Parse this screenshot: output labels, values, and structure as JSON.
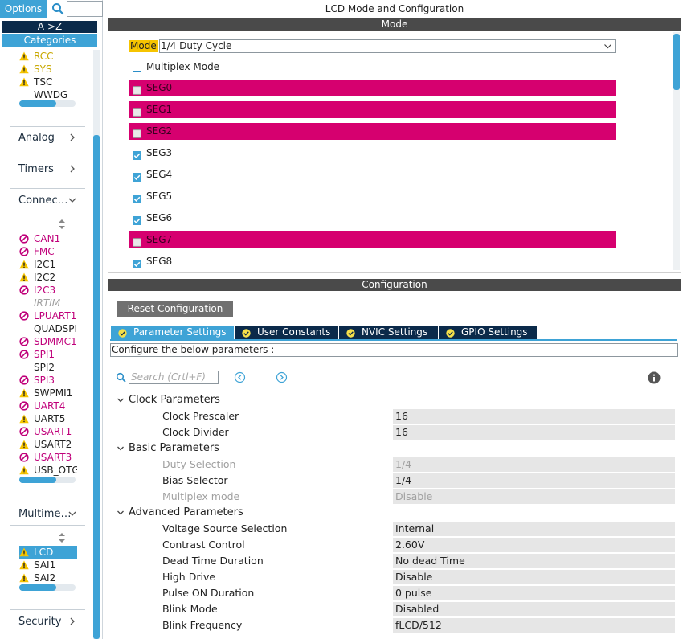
{
  "sidebar": {
    "options_label": "Options",
    "az_label": "A->Z",
    "categories_label": "Categories",
    "system_items": [
      {
        "label": "RCC",
        "status": "warning",
        "color": "yellow"
      },
      {
        "label": "SYS",
        "status": "warning",
        "color": "yellow"
      },
      {
        "label": "TSC",
        "status": "warning",
        "color": "dark"
      },
      {
        "label": "WWDG",
        "status": "none",
        "color": "dark"
      }
    ],
    "groups": {
      "analog": "Analog",
      "timers": "Timers",
      "connectivity": "Connec…",
      "multimedia": "Multime…",
      "security": "Security"
    },
    "connectivity_items": [
      {
        "label": "CAN1",
        "status": "blocked",
        "color": "pink"
      },
      {
        "label": "FMC",
        "status": "blocked",
        "color": "pink"
      },
      {
        "label": "I2C1",
        "status": "warning",
        "color": "dark"
      },
      {
        "label": "I2C2",
        "status": "warning",
        "color": "dark"
      },
      {
        "label": "I2C3",
        "status": "blocked",
        "color": "pink"
      },
      {
        "label": "IRTIM",
        "status": "none",
        "color": "grey"
      },
      {
        "label": "LPUART1",
        "status": "blocked",
        "color": "pink"
      },
      {
        "label": "QUADSPI",
        "status": "none",
        "color": "dark"
      },
      {
        "label": "SDMMC1",
        "status": "blocked",
        "color": "pink"
      },
      {
        "label": "SPI1",
        "status": "blocked",
        "color": "pink"
      },
      {
        "label": "SPI2",
        "status": "none",
        "color": "dark"
      },
      {
        "label": "SPI3",
        "status": "blocked",
        "color": "pink"
      },
      {
        "label": "SWPMI1",
        "status": "warning",
        "color": "dark"
      },
      {
        "label": "UART4",
        "status": "blocked",
        "color": "pink"
      },
      {
        "label": "UART5",
        "status": "warning",
        "color": "dark"
      },
      {
        "label": "USART1",
        "status": "blocked",
        "color": "pink"
      },
      {
        "label": "USART2",
        "status": "warning",
        "color": "dark"
      },
      {
        "label": "USART3",
        "status": "blocked",
        "color": "pink"
      },
      {
        "label": "USB_OTG_FS",
        "status": "warning",
        "color": "dark"
      }
    ],
    "multimedia_items": [
      {
        "label": "LCD",
        "status": "warning",
        "color": "dark",
        "selected": true
      },
      {
        "label": "SAI1",
        "status": "warning",
        "color": "dark"
      },
      {
        "label": "SAI2",
        "status": "warning",
        "color": "dark"
      }
    ]
  },
  "mode_panel": {
    "title": "LCD Mode and Configuration",
    "mode_header": "Mode",
    "mode_label": "Mode",
    "mode_value": "1/4 Duty Cycle",
    "multiplex_label": "Multiplex Mode",
    "segments": [
      {
        "label": "SEG0",
        "checked": false,
        "conflict": true
      },
      {
        "label": "SEG1",
        "checked": false,
        "conflict": true
      },
      {
        "label": "SEG2",
        "checked": false,
        "conflict": true
      },
      {
        "label": "SEG3",
        "checked": true,
        "conflict": false
      },
      {
        "label": "SEG4",
        "checked": true,
        "conflict": false
      },
      {
        "label": "SEG5",
        "checked": true,
        "conflict": false
      },
      {
        "label": "SEG6",
        "checked": true,
        "conflict": false
      },
      {
        "label": "SEG7",
        "checked": false,
        "conflict": true
      },
      {
        "label": "SEG8",
        "checked": true,
        "conflict": false
      }
    ]
  },
  "config_panel": {
    "header": "Configuration",
    "reset_label": "Reset Configuration",
    "tabs": [
      {
        "label": "Parameter Settings",
        "active": true
      },
      {
        "label": "User Constants",
        "active": false
      },
      {
        "label": "NVIC Settings",
        "active": false
      },
      {
        "label": "GPIO Settings",
        "active": false
      }
    ],
    "hint": "Configure the below parameters :",
    "search_placeholder": "Search (Crtl+F)",
    "sections": [
      {
        "title": "Clock Parameters",
        "params": [
          {
            "name": "Clock Prescaler",
            "value": "16",
            "disabled": false
          },
          {
            "name": "Clock Divider",
            "value": "16",
            "disabled": false
          }
        ]
      },
      {
        "title": "Basic Parameters",
        "params": [
          {
            "name": "Duty Selection",
            "value": "1/4",
            "disabled": true
          },
          {
            "name": "Bias Selector",
            "value": "1/4",
            "disabled": false
          },
          {
            "name": "Multiplex mode",
            "value": "Disable",
            "disabled": true
          }
        ]
      },
      {
        "title": "Advanced Parameters",
        "params": [
          {
            "name": "Voltage Source Selection",
            "value": "Internal",
            "disabled": false
          },
          {
            "name": "Contrast Control",
            "value": "2.60V",
            "disabled": false
          },
          {
            "name": "Dead Time Duration",
            "value": "No dead Time",
            "disabled": false
          },
          {
            "name": "High Drive",
            "value": "Disable",
            "disabled": false
          },
          {
            "name": "Pulse ON Duration",
            "value": "0 pulse",
            "disabled": false
          },
          {
            "name": "Blink Mode",
            "value": "Disabled",
            "disabled": false
          },
          {
            "name": "Blink Frequency",
            "value": "fLCD/512",
            "disabled": false
          }
        ]
      }
    ]
  },
  "colors": {
    "accent": "#3ea3d6",
    "navy": "#0b2a4a",
    "conflict": "#d6006f",
    "warning": "#f6c400",
    "blocked": "#c0007a"
  }
}
